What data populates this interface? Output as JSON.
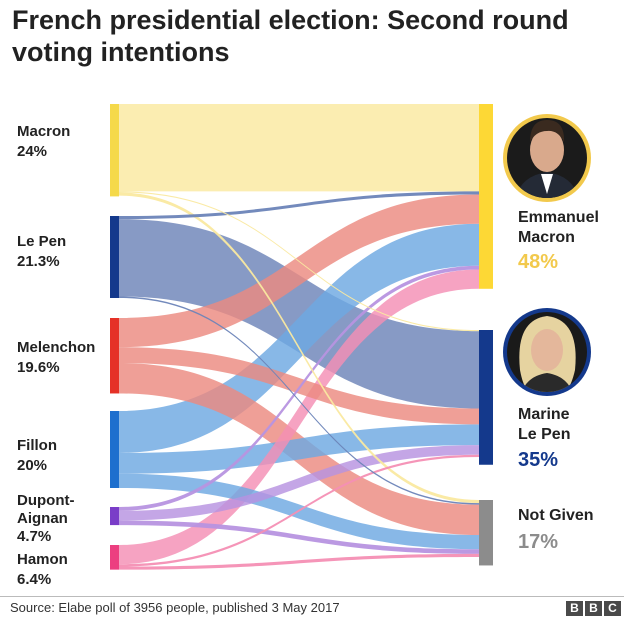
{
  "title": "French presidential election: Second round voting intentions",
  "source": "Source: Elabe poll of 3956 people, published 3 May 2017",
  "brand": [
    "B",
    "B",
    "C"
  ],
  "chart_data": {
    "type": "sankey",
    "title": "French presidential election: Second round voting intentions",
    "units": "percent of voters",
    "sources": [
      {
        "name": "Macron",
        "value": "24%",
        "share": 24,
        "color": "#f5d94a",
        "flow_color": "#fae9a0"
      },
      {
        "name": "Le Pen",
        "value": "21.3%",
        "share": 21.3,
        "color": "#14398c",
        "flow_color": "#6c84b8"
      },
      {
        "name": "Melenchon",
        "value": "19.6%",
        "share": 19.6,
        "color": "#e53127",
        "flow_color": "#ec8a80"
      },
      {
        "name": "Fillon",
        "value": "20%",
        "share": 20,
        "color": "#1d6fce",
        "flow_color": "#6ea8e2"
      },
      {
        "name": "Dupont-Aignan",
        "value": "4.7%",
        "share": 4.7,
        "color": "#7a3dc8",
        "flow_color": "#b793e0"
      },
      {
        "name": "Hamon",
        "value": "6.4%",
        "share": 6.4,
        "color": "#ec3f80",
        "flow_color": "#f48fb4"
      }
    ],
    "targets": [
      {
        "name_lines": [
          "Emmanuel",
          "Macron"
        ],
        "value": "48%",
        "share": 48,
        "color": "#fdd835",
        "pct_color": "#f2c94c"
      },
      {
        "name_lines": [
          "Marine",
          "Le Pen"
        ],
        "value": "35%",
        "share": 35,
        "color": "#14398c",
        "pct_color": "#14398c"
      },
      {
        "name_lines": [
          "Not Given"
        ],
        "value": "17%",
        "share": 17,
        "color": "#8c8c8c",
        "pct_color": "#8c8c8c"
      }
    ],
    "flows": [
      {
        "from": "Macron",
        "to": "Emmanuel Macron",
        "value": 22.7
      },
      {
        "from": "Macron",
        "to": "Marine Le Pen",
        "value": 0.3
      },
      {
        "from": "Macron",
        "to": "Not Given",
        "value": 0.8
      },
      {
        "from": "Le Pen",
        "to": "Emmanuel Macron",
        "value": 0.8
      },
      {
        "from": "Le Pen",
        "to": "Marine Le Pen",
        "value": 20.1
      },
      {
        "from": "Le Pen",
        "to": "Not Given",
        "value": 0.4
      },
      {
        "from": "Melenchon",
        "to": "Emmanuel Macron",
        "value": 7.6
      },
      {
        "from": "Melenchon",
        "to": "Marine Le Pen",
        "value": 4.1
      },
      {
        "from": "Melenchon",
        "to": "Not Given",
        "value": 7.9
      },
      {
        "from": "Fillon",
        "to": "Emmanuel Macron",
        "value": 10.9
      },
      {
        "from": "Fillon",
        "to": "Marine Le Pen",
        "value": 5.4
      },
      {
        "from": "Fillon",
        "to": "Not Given",
        "value": 3.7
      },
      {
        "from": "Dupont-Aignan",
        "to": "Emmanuel Macron",
        "value": 1.0
      },
      {
        "from": "Dupont-Aignan",
        "to": "Marine Le Pen",
        "value": 2.5
      },
      {
        "from": "Dupont-Aignan",
        "to": "Not Given",
        "value": 1.2
      },
      {
        "from": "Hamon",
        "to": "Emmanuel Macron",
        "value": 5.0
      },
      {
        "from": "Hamon",
        "to": "Marine Le Pen",
        "value": 0.6
      },
      {
        "from": "Hamon",
        "to": "Not Given",
        "value": 0.8
      }
    ]
  }
}
